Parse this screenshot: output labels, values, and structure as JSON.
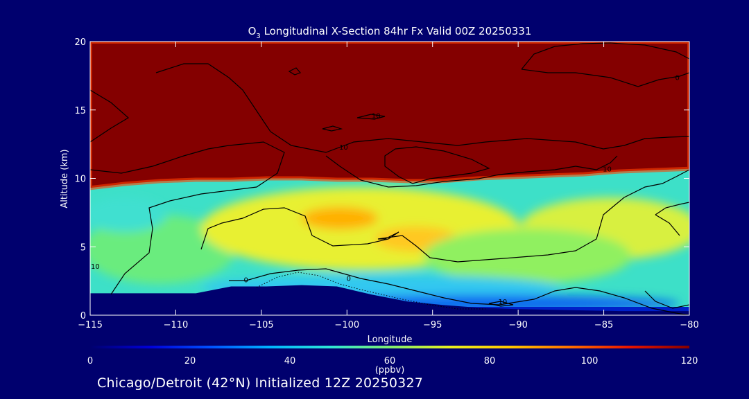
{
  "colors": {
    "background": "#00006e",
    "stratosphere": "#840000",
    "contour_line": "#000000",
    "text": "#ffffff"
  },
  "chart_data": {
    "type": "heatmap",
    "title_prefix": "O",
    "title_sub": "3",
    "title_rest": " Longitudinal X-Section 84hr  Fx Valid 00Z 20250331",
    "xlabel": "Longitude",
    "ylabel": "Altitude (km)",
    "xlim": [
      -115,
      -80
    ],
    "ylim": [
      0,
      20
    ],
    "xticks": [
      -115,
      -110,
      -105,
      -100,
      -95,
      -90,
      -85,
      -80
    ],
    "xtick_labels": [
      "−115",
      "−110",
      "−105",
      "−100",
      "−95",
      "−90",
      "−85",
      "−80"
    ],
    "yticks": [
      0,
      5,
      10,
      15,
      20
    ],
    "ytick_labels": [
      "0",
      "5",
      "10",
      "15",
      "20"
    ],
    "colorbar": {
      "range": [
        0,
        120
      ],
      "ticks": [
        0,
        20,
        40,
        60,
        80,
        100,
        120
      ],
      "tick_labels": [
        "0",
        "20",
        "40",
        "60",
        "80",
        "100",
        "120"
      ],
      "unit": "(ppbv)",
      "colors": [
        "#00006e",
        "#0000d8",
        "#0050ff",
        "#00b4ff",
        "#2ee6d6",
        "#80ee70",
        "#e8f020",
        "#ffc800",
        "#ff7000",
        "#e81400",
        "#840000"
      ]
    },
    "grid": false,
    "tropopause_km": [
      9.3,
      9.6,
      9.8,
      9.9,
      9.9,
      10.0,
      10.0,
      9.9,
      9.9,
      9.8,
      9.8,
      10.0,
      10.1,
      10.2,
      10.3,
      10.5,
      10.6,
      10.7
    ],
    "terrain_km": [
      1.6,
      1.6,
      1.6,
      1.6,
      2.1,
      2.1,
      2.2,
      2.1,
      1.5,
      1.0,
      0.75,
      0.55,
      0.45,
      0.4,
      0.35,
      0.3,
      0.3,
      0.3
    ],
    "contour_labels": [
      {
        "text": "10",
        "lon": -114.7,
        "alt": 3.4
      },
      {
        "text": "0",
        "lon": -105.9,
        "alt": 2.4
      },
      {
        "text": "0",
        "lon": -99.9,
        "alt": 2.5
      },
      {
        "text": "10",
        "lon": -98.3,
        "alt": 14.4
      },
      {
        "text": "10",
        "lon": -100.2,
        "alt": 12.1
      },
      {
        "text": "10",
        "lon": -84.8,
        "alt": 10.5
      },
      {
        "text": "10",
        "lon": -90.9,
        "alt": 0.8
      },
      {
        "text": "0",
        "lon": -80.7,
        "alt": 17.2
      }
    ]
  },
  "footer": "Chicago/Detroit (42°N) Initialized 12Z 20250327"
}
